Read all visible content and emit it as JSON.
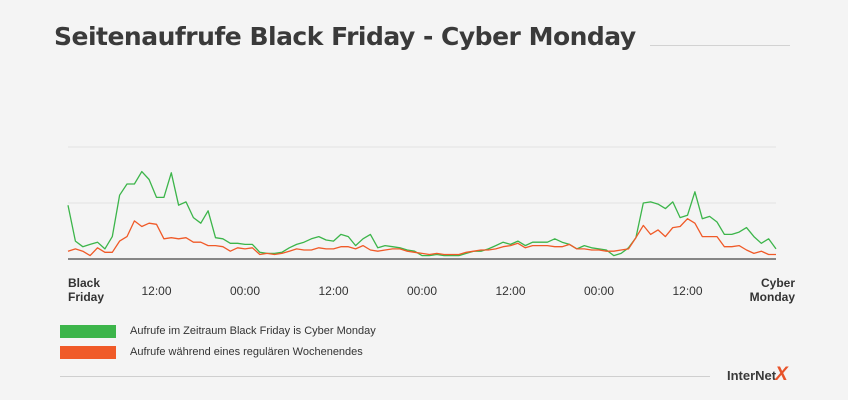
{
  "title": "Seitenaufrufe Black Friday - Cyber Monday",
  "logo": {
    "text": "InterNet",
    "accent": "X"
  },
  "legend": [
    {
      "label": "Aufrufe im Zeitraum Black Friday is Cyber Monday",
      "color": "#3cb54a"
    },
    {
      "label": "Aufrufe während eines regulären Wochenendes",
      "color": "#f05a28"
    }
  ],
  "chart_data": {
    "type": "line",
    "title": "Seitenaufrufe Black Friday - Cyber Monday",
    "xlabel": "",
    "ylabel": "",
    "grid": true,
    "legend_position": "bottom-left",
    "ylim": [
      0,
      100
    ],
    "x_tick_labels": [
      "Black\nFriday",
      "12:00",
      "00:00",
      "12:00",
      "00:00",
      "12:00",
      "00:00",
      "12:00",
      "Cyber\nMonday"
    ],
    "x_tick_positions": [
      0,
      12,
      24,
      36,
      48,
      60,
      72,
      84,
      96
    ],
    "xlim": [
      0,
      96
    ],
    "series": [
      {
        "name": "Aufrufe im Zeitraum Black Friday is Cyber Monday",
        "color": "#3cb54a",
        "values": [
          48,
          16,
          11,
          13,
          15,
          9,
          20,
          57,
          67,
          67,
          78,
          71,
          55,
          55,
          77,
          48,
          51,
          37,
          32,
          43,
          19,
          18,
          14,
          14,
          13,
          13,
          6,
          5,
          5,
          6,
          10,
          13,
          15,
          18,
          20,
          17,
          16,
          22,
          20,
          12,
          18,
          22,
          10,
          12,
          11,
          10,
          8,
          7,
          3,
          3,
          4,
          3,
          3,
          3,
          5,
          7,
          7,
          9,
          12,
          15,
          13,
          16,
          12,
          15,
          15,
          15,
          18,
          15,
          13,
          9,
          12,
          10,
          9,
          8,
          3,
          5,
          10,
          19,
          50,
          51,
          49,
          45,
          51,
          37,
          39,
          60,
          36,
          38,
          33,
          22,
          22,
          24,
          28,
          20,
          14,
          18,
          9
        ]
      },
      {
        "name": "Aufrufe während eines regulären Wochenendes",
        "color": "#f05a28",
        "values": [
          7,
          9,
          7,
          3,
          10,
          6,
          6,
          16,
          20,
          34,
          29,
          32,
          31,
          18,
          19,
          18,
          19,
          15,
          15,
          12,
          12,
          11,
          7,
          10,
          9,
          10,
          4,
          5,
          4,
          5,
          7,
          9,
          8,
          8,
          10,
          9,
          9,
          11,
          11,
          9,
          12,
          8,
          7,
          8,
          9,
          9,
          7,
          6,
          5,
          4,
          5,
          4,
          4,
          4,
          6,
          7,
          8,
          8,
          9,
          11,
          12,
          14,
          10,
          12,
          12,
          12,
          11,
          11,
          13,
          9,
          9,
          8,
          8,
          7,
          7,
          8,
          9,
          19,
          30,
          22,
          26,
          20,
          28,
          29,
          36,
          32,
          20,
          20,
          20,
          11,
          11,
          12,
          8,
          5,
          7,
          4,
          4
        ]
      }
    ]
  }
}
